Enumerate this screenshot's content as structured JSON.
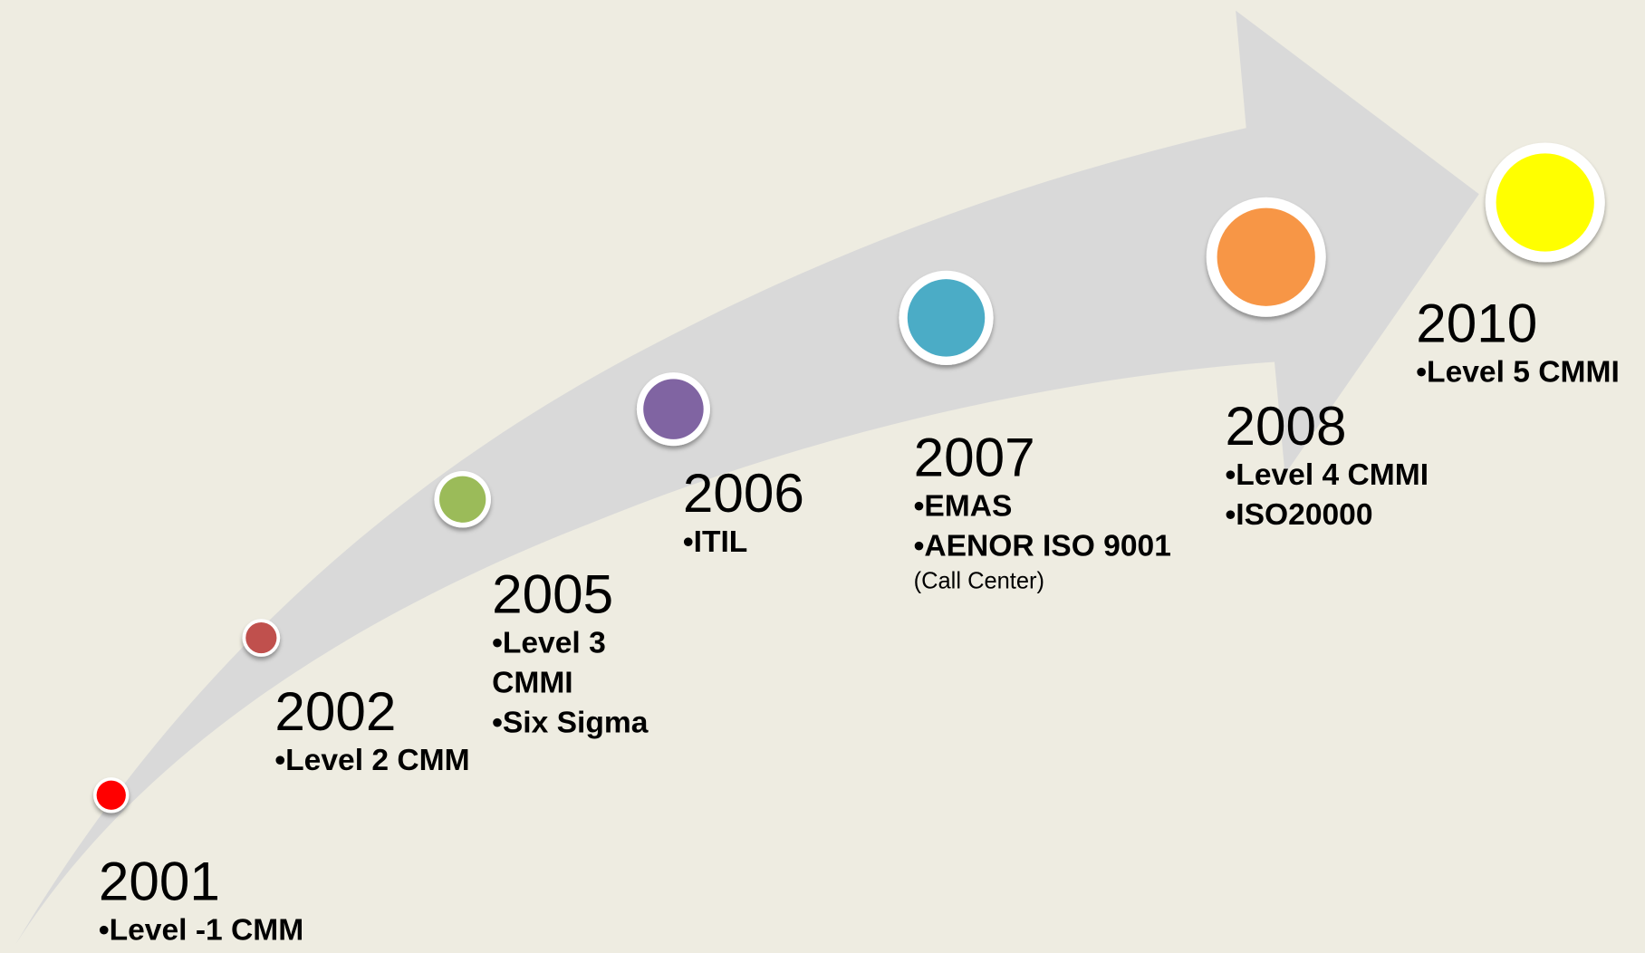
{
  "milestones": [
    {
      "year": "2001",
      "items": [
        "•Level -1 CMM"
      ],
      "color": "#ff0000"
    },
    {
      "year": "2002",
      "items": [
        "•Level 2 CMM"
      ],
      "color": "#c0504d"
    },
    {
      "year": "2005",
      "items": [
        "•Level 3 CMMI",
        "•Six Sigma"
      ],
      "color": "#9bbb59"
    },
    {
      "year": "2006",
      "items": [
        "•ITIL"
      ],
      "color": "#8064a2"
    },
    {
      "year": "2007",
      "items": [
        "•EMAS",
        "•AENOR ISO 9001"
      ],
      "note": "(Call Center)",
      "color": "#4bacc6"
    },
    {
      "year": "2008",
      "items": [
        "•Level 4 CMMI",
        "•ISO20000"
      ],
      "color": "#f79646"
    },
    {
      "year": "2010",
      "items": [
        "•Level 5 CMMI"
      ],
      "color": "#ffff00"
    }
  ]
}
